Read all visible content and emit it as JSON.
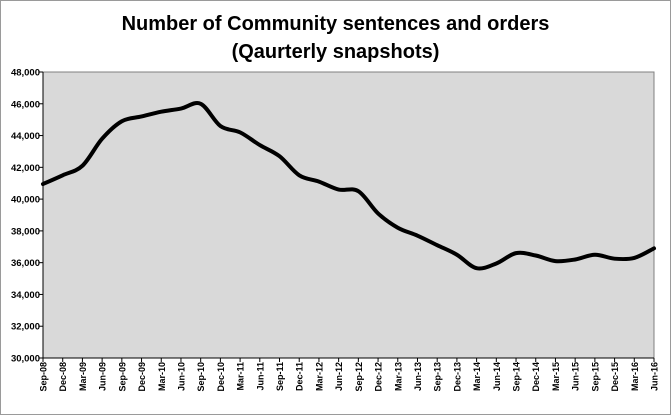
{
  "chart_data": {
    "type": "line",
    "title_line1": "Number of Community sentences and orders",
    "title_line2": "(Qaurterly snapshots)",
    "xlabel": "",
    "ylabel": "",
    "ylim": [
      30000,
      48000
    ],
    "y_ticks": [
      30000,
      32000,
      34000,
      36000,
      38000,
      40000,
      42000,
      44000,
      46000,
      48000
    ],
    "y_tick_labels": [
      "30,000",
      "32,000",
      "34,000",
      "36,000",
      "38,000",
      "40,000",
      "42,000",
      "44,000",
      "46,000",
      "48,000"
    ],
    "categories": [
      "Sep-08",
      "Dec-08",
      "Mar-09",
      "Jun-09",
      "Sep-09",
      "Dec-09",
      "Mar-10",
      "Jun-10",
      "Sep-10",
      "Dec-10",
      "Mar-11",
      "Jun-11",
      "Sep-11",
      "Dec-11",
      "Mar-12",
      "Jun-12",
      "Sep-12",
      "Dec-12",
      "Mar-13",
      "Jun-13",
      "Sep-13",
      "Dec-13",
      "Mar-14",
      "Jun-14",
      "Sep-14",
      "Dec-14",
      "Mar-15",
      "Jun-15",
      "Sep-15",
      "Dec-15",
      "Mar-16",
      "Jun-16"
    ],
    "series": [
      {
        "values": [
          40950,
          41500,
          42100,
          43800,
          44900,
          45200,
          45500,
          45700,
          46000,
          44600,
          44200,
          43400,
          42700,
          41500,
          41100,
          40600,
          40500,
          39100,
          38200,
          37700,
          37100,
          36500,
          35650,
          35950,
          36600,
          36450,
          36100,
          36200,
          36500,
          36250,
          36300,
          36900
        ]
      }
    ],
    "grid": false,
    "legend": "none",
    "colors": {
      "plot_background": "#d9d9d9",
      "line": "#000000",
      "frame": "#9a9a9a"
    }
  }
}
